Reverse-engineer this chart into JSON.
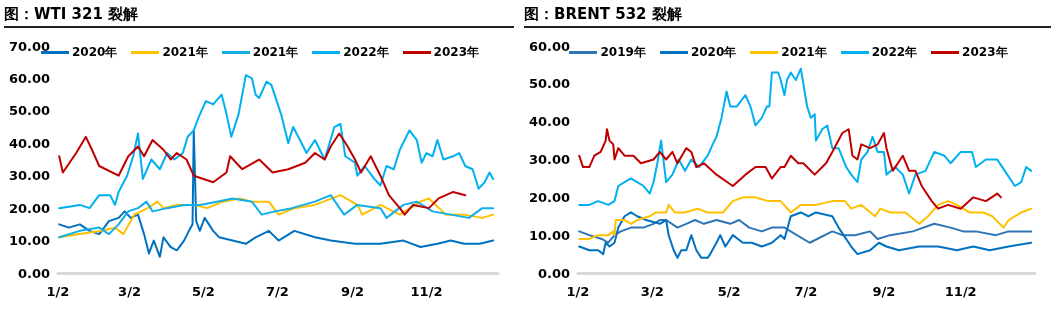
{
  "chart_data": [
    {
      "type": "line",
      "title": "图：WTI 321 裂解",
      "legend": "top",
      "marker": "none",
      "line_style": "solid",
      "xlim": [
        "--01-02",
        "--12-31"
      ],
      "xticks": [
        {
          "value": "--01-02",
          "label": "1/2"
        },
        {
          "value": "--03-02",
          "label": "3/2"
        },
        {
          "value": "--05-02",
          "label": "5/2"
        },
        {
          "value": "--07-02",
          "label": "7/2"
        },
        {
          "value": "--09-02",
          "label": "9/2"
        },
        {
          "value": "--11-02",
          "label": "11/2"
        }
      ],
      "ylim": [
        0,
        70
      ],
      "yticks": [
        {
          "value": 0,
          "label": "0.00"
        },
        {
          "value": 10,
          "label": "10.00"
        },
        {
          "value": 20,
          "label": "20.00"
        },
        {
          "value": 30,
          "label": "30.00"
        },
        {
          "value": 40,
          "label": "40.00"
        },
        {
          "value": 50,
          "label": "50.00"
        },
        {
          "value": 60,
          "label": "60.00"
        },
        {
          "value": 70,
          "label": "70.00"
        }
      ],
      "series": [
        {
          "name": "2020年",
          "color": "#0070c0",
          "x": [
            "--01-03",
            "--01-11",
            "--01-20",
            "--01-28",
            "--02-05",
            "--02-13",
            "--02-21",
            "--02-26",
            "--03-03",
            "--03-09",
            "--03-14",
            "--03-18",
            "--03-22",
            "--03-27",
            "--03-30",
            "--04-05",
            "--04-10",
            "--04-16",
            "--04-20",
            "--04-23",
            "--04-24",
            "--04-26",
            "--04-29",
            "--05-03",
            "--05-10",
            "--05-15",
            "--05-26",
            "--06-06",
            "--06-14",
            "--06-25",
            "--07-03",
            "--07-16",
            "--08-02",
            "--08-15",
            "--09-04",
            "--09-25",
            "--10-14",
            "--10-28",
            "--11-11",
            "--11-22",
            "--12-03",
            "--12-16",
            "--12-27"
          ],
          "values": [
            15,
            14,
            15,
            13,
            12,
            16,
            17,
            19,
            17,
            18,
            12,
            6,
            10,
            5,
            11,
            8,
            7,
            10,
            13,
            15,
            44,
            16,
            13,
            17,
            13,
            11,
            10,
            9,
            11,
            13,
            10,
            13,
            11,
            10,
            9,
            9,
            10,
            8,
            9,
            10,
            9,
            9,
            10
          ]
        },
        {
          "name": "2021年",
          "color": "#ffc000",
          "x": [
            "--01-03",
            "--01-20",
            "--02-07",
            "--02-18",
            "--02-25",
            "--03-06",
            "--03-17",
            "--03-25",
            "--03-30",
            "--04-10",
            "--04-24",
            "--05-05",
            "--05-18",
            "--06-01",
            "--06-11",
            "--06-25",
            "--07-03",
            "--07-16",
            "--08-02",
            "--08-23",
            "--09-06",
            "--09-10",
            "--09-25",
            "--10-11",
            "--10-28",
            "--11-04",
            "--11-18",
            "--12-03",
            "--12-18",
            "--12-27"
          ],
          "values": [
            11,
            12,
            13,
            14,
            12,
            18,
            20,
            22,
            20,
            21,
            21,
            20,
            22,
            23,
            22,
            22,
            18,
            20,
            21,
            24,
            21,
            18,
            21,
            18,
            22,
            23,
            18,
            18,
            17,
            18
          ]
        },
        {
          "name": "2021年",
          "color": "#12aee8",
          "x": [
            "--01-03",
            "--01-20",
            "--02-05",
            "--02-13",
            "--02-21",
            "--03-01",
            "--03-09",
            "--03-16",
            "--03-21",
            "--04-02",
            "--04-16",
            "--04-29",
            "--05-13",
            "--05-26",
            "--06-11",
            "--06-19",
            "--06-30",
            "--07-14",
            "--08-02",
            "--08-15",
            "--08-26",
            "--09-06",
            "--09-25",
            "--09-30",
            "--10-14",
            "--10-25",
            "--11-07",
            "--11-22",
            "--12-07",
            "--12-18",
            "--12-27"
          ],
          "values": [
            11,
            13,
            14,
            12,
            15,
            19,
            20,
            22,
            19,
            20,
            21,
            21,
            22,
            23,
            22,
            18,
            19,
            20,
            22,
            24,
            18,
            21,
            20,
            17,
            21,
            22,
            19,
            18,
            17,
            20,
            20
          ]
        },
        {
          "name": "2022年",
          "color": "#00b0f0",
          "x": [
            "--01-03",
            "--01-20",
            "--01-28",
            "--02-05",
            "--02-14",
            "--02-18",
            "--02-21",
            "--02-28",
            "--03-05",
            "--03-09",
            "--03-13",
            "--03-20",
            "--03-27",
            "--04-02",
            "--04-08",
            "--04-15",
            "--04-19",
            "--04-24",
            "--04-28",
            "--05-04",
            "--05-10",
            "--05-17",
            "--05-21",
            "--05-25",
            "--05-31",
            "--06-02",
            "--06-06",
            "--06-11",
            "--06-14",
            "--06-17",
            "--06-23",
            "--06-27",
            "--07-05",
            "--07-11",
            "--07-15",
            "--07-22",
            "--07-26",
            "--08-02",
            "--08-10",
            "--08-18",
            "--08-23",
            "--08-27",
            "--09-04",
            "--09-06",
            "--09-12",
            "--09-20",
            "--09-25",
            "--09-30",
            "--10-06",
            "--10-11",
            "--10-19",
            "--10-25",
            "--10-29",
            "--11-02",
            "--11-07",
            "--11-11",
            "--11-16",
            "--11-24",
            "--11-29",
            "--12-04",
            "--12-10",
            "--12-15",
            "--12-20",
            "--12-24",
            "--12-27"
          ],
          "values": [
            20,
            21,
            20,
            24,
            24,
            21,
            25,
            30,
            36,
            43,
            29,
            35,
            32,
            37,
            35,
            37,
            42,
            44,
            48,
            53,
            52,
            55,
            49,
            42,
            49,
            53,
            61,
            60,
            55,
            54,
            59,
            58,
            49,
            40,
            45,
            40,
            37,
            41,
            35,
            45,
            46,
            36,
            34,
            30,
            33,
            29,
            27,
            33,
            32,
            38,
            44,
            41,
            34,
            37,
            36,
            41,
            35,
            36,
            37,
            33,
            32,
            26,
            28,
            31,
            29
          ]
        },
        {
          "name": "2023年",
          "color": "#c00000",
          "x": [
            "--01-03",
            "--01-06",
            "--01-17",
            "--01-25",
            "--01-30",
            "--02-05",
            "--02-21",
            "--03-01",
            "--03-09",
            "--03-14",
            "--03-21",
            "--03-30",
            "--04-05",
            "--04-10",
            "--04-18",
            "--04-24",
            "--05-10",
            "--05-21",
            "--05-24",
            "--06-03",
            "--06-17",
            "--06-28",
            "--07-11",
            "--07-25",
            "--08-02",
            "--08-10",
            "--08-15",
            "--08-22",
            "--08-29",
            "--09-04",
            "--09-09",
            "--09-17",
            "--09-25",
            "--10-02",
            "--10-11",
            "--10-15",
            "--10-22",
            "--11-04",
            "--11-12",
            "--11-24",
            "--12-04"
          ],
          "values": [
            36,
            31,
            37,
            42,
            38,
            33,
            30,
            36,
            39,
            36,
            41,
            38,
            35,
            37,
            35,
            30,
            28,
            31,
            36,
            32,
            35,
            31,
            32,
            34,
            37,
            35,
            39,
            43,
            39,
            35,
            31,
            36,
            30,
            24,
            20,
            18,
            21,
            20,
            23,
            25,
            24
          ]
        }
      ]
    },
    {
      "type": "line",
      "title": "图：BRENT 532 裂解",
      "legend": "top",
      "marker": "none",
      "line_style": "solid",
      "xlim": [
        "--01-02",
        "--12-31"
      ],
      "xticks": [
        {
          "value": "--01-02",
          "label": "1/2"
        },
        {
          "value": "--03-02",
          "label": "3/2"
        },
        {
          "value": "--05-02",
          "label": "5/2"
        },
        {
          "value": "--07-02",
          "label": "7/2"
        },
        {
          "value": "--09-02",
          "label": "9/2"
        },
        {
          "value": "--11-02",
          "label": "11/2"
        }
      ],
      "ylim": [
        0,
        60
      ],
      "yticks": [
        {
          "value": 0,
          "label": "0.00"
        },
        {
          "value": 10,
          "label": "10.00"
        },
        {
          "value": 20,
          "label": "20.00"
        },
        {
          "value": 30,
          "label": "30.00"
        },
        {
          "value": 40,
          "label": "40.00"
        },
        {
          "value": 50,
          "label": "50.00"
        },
        {
          "value": 60,
          "label": "60.00"
        }
      ],
      "series": [
        {
          "name": "2019年",
          "color": "#2e75b6",
          "x": [
            "--01-03",
            "--01-11",
            "--01-21",
            "--01-26",
            "--01-31",
            "--02-05",
            "--02-13",
            "--02-23",
            "--03-03",
            "--03-08",
            "--03-13",
            "--03-22",
            "--03-29",
            "--04-05",
            "--04-12",
            "--04-22",
            "--05-03",
            "--05-10",
            "--05-18",
            "--05-28",
            "--06-05",
            "--06-12",
            "--06-15",
            "--07-05",
            "--07-23",
            "--07-31",
            "--08-10",
            "--08-22",
            "--08-28",
            "--09-07",
            "--09-25",
            "--10-12",
            "--10-25",
            "--11-04",
            "--11-14",
            "--11-30",
            "--12-10",
            "--12-28"
          ],
          "values": [
            11,
            10,
            9,
            8,
            10,
            11,
            12,
            12,
            13,
            14,
            14,
            12,
            13,
            14,
            13,
            14,
            13,
            14,
            12,
            11,
            12,
            12,
            12,
            8,
            11,
            10,
            10,
            11,
            9,
            10,
            11,
            13,
            12,
            11,
            11,
            10,
            11,
            11
          ]
        },
        {
          "name": "2020年",
          "color": "#0070c0",
          "x": [
            "--01-03",
            "--01-11",
            "--01-18",
            "--01-22",
            "--01-24",
            "--01-27",
            "--01-31",
            "--02-03",
            "--02-08",
            "--02-13",
            "--02-18",
            "--02-25",
            "--03-08",
            "--03-13",
            "--03-15",
            "--03-19",
            "--03-22",
            "--03-25",
            "--03-29",
            "--04-02",
            "--04-06",
            "--04-10",
            "--04-15",
            "--04-17",
            "--04-22",
            "--04-25",
            "--04-29",
            "--05-05",
            "--05-13",
            "--05-20",
            "--05-28",
            "--06-05",
            "--06-12",
            "--06-15",
            "--06-20",
            "--06-28",
            "--07-04",
            "--07-10",
            "--07-23",
            "--07-28",
            "--08-07",
            "--08-12",
            "--08-22",
            "--08-29",
            "--09-04",
            "--09-14",
            "--09-30",
            "--10-15",
            "--10-30",
            "--11-12",
            "--11-25",
            "--12-10",
            "--12-28"
          ],
          "values": [
            7,
            6,
            6,
            5,
            8,
            7,
            8,
            12,
            15,
            16,
            15,
            14,
            13,
            14,
            10,
            6,
            4,
            6,
            6,
            10,
            6,
            4,
            4,
            5,
            8,
            10,
            7,
            10,
            8,
            8,
            7,
            8,
            10,
            9,
            15,
            16,
            15,
            16,
            15,
            12,
            7,
            5,
            6,
            8,
            7,
            6,
            7,
            7,
            6,
            7,
            6,
            7,
            8
          ]
        },
        {
          "name": "2021年",
          "color": "#ffc000",
          "x": [
            "--01-03",
            "--01-11",
            "--01-18",
            "--01-26",
            "--01-30",
            "--01-31",
            "--02-01",
            "--02-08",
            "--02-13",
            "--02-18",
            "--02-28",
            "--03-05",
            "--03-13",
            "--03-15",
            "--03-20",
            "--03-28",
            "--04-07",
            "--04-15",
            "--04-22",
            "--04-27",
            "--05-05",
            "--05-13",
            "--05-23",
            "--06-02",
            "--06-12",
            "--06-20",
            "--06-28",
            "--07-10",
            "--07-23",
            "--08-02",
            "--08-07",
            "--08-15",
            "--08-26",
            "--08-30",
            "--09-07",
            "--09-19",
            "--09-30",
            "--10-07",
            "--10-15",
            "--10-23",
            "--10-30",
            "--11-09",
            "--11-20",
            "--11-27",
            "--12-06",
            "--12-10",
            "--12-20",
            "--12-28"
          ],
          "values": [
            9,
            9,
            10,
            10,
            11,
            10,
            14,
            14,
            13,
            14,
            15,
            16,
            16,
            18,
            16,
            16,
            17,
            16,
            16,
            16,
            19,
            20,
            20,
            19,
            19,
            16,
            18,
            18,
            19,
            19,
            17,
            18,
            15,
            17,
            16,
            16,
            13,
            15,
            18,
            19,
            18,
            16,
            16,
            15,
            12,
            14,
            16,
            17
          ]
        },
        {
          "name": "2022年",
          "color": "#00b0f0",
          "x": [
            "--01-03",
            "--01-11",
            "--01-18",
            "--01-26",
            "--01-31",
            "--02-03",
            "--02-08",
            "--02-13",
            "--02-18",
            "--02-23",
            "--02-28",
            "--03-03",
            "--03-06",
            "--03-09",
            "--03-13",
            "--03-18",
            "--03-23",
            "--03-28",
            "--04-02",
            "--04-08",
            "--04-15",
            "--04-19",
            "--04-22",
            "--04-26",
            "--04-30",
            "--05-03",
            "--05-08",
            "--05-15",
            "--05-19",
            "--05-23",
            "--05-28",
            "--06-01",
            "--06-03",
            "--06-05",
            "--06-10",
            "--06-12",
            "--06-15",
            "--06-17",
            "--06-20",
            "--06-24",
            "--06-28",
            "--07-03",
            "--07-06",
            "--07-09",
            "--07-10",
            "--07-15",
            "--07-19",
            "--07-23",
            "--07-28",
            "--08-03",
            "--08-07",
            "--08-12",
            "--08-15",
            "--08-20",
            "--08-24",
            "--08-28",
            "--09-02",
            "--09-04",
            "--09-11",
            "--09-17",
            "--09-22",
            "--09-27",
            "--10-05",
            "--10-12",
            "--10-20",
            "--10-25",
            "--11-02",
            "--11-11",
            "--11-14",
            "--11-22",
            "--12-01",
            "--12-07",
            "--12-15",
            "--12-20",
            "--12-24",
            "--12-28"
          ],
          "values": [
            18,
            18,
            19,
            18,
            19,
            23,
            24,
            25,
            24,
            23,
            21,
            24,
            29,
            35,
            24,
            26,
            30,
            27,
            30,
            28,
            31,
            34,
            36,
            41,
            48,
            44,
            44,
            47,
            44,
            39,
            41,
            44,
            44,
            53,
            53,
            51,
            47,
            51,
            53,
            51,
            54,
            44,
            41,
            42,
            35,
            38,
            39,
            33,
            33,
            28,
            26,
            24,
            30,
            32,
            36,
            32,
            32,
            26,
            28,
            26,
            21,
            26,
            27,
            32,
            31,
            29,
            32,
            32,
            28,
            30,
            30,
            27,
            23,
            24,
            28,
            27
          ]
        },
        {
          "name": "2023年",
          "color": "#c00000",
          "x": [
            "--01-03",
            "--01-06",
            "--01-11",
            "--01-15",
            "--01-20",
            "--01-24",
            "--01-25",
            "--01-27",
            "--01-30",
            "--01-31",
            "--02-03",
            "--02-08",
            "--02-15",
            "--02-21",
            "--03-03",
            "--03-08",
            "--03-13",
            "--03-18",
            "--03-22",
            "--03-29",
            "--04-02",
            "--04-06",
            "--04-12",
            "--04-22",
            "--05-05",
            "--05-15",
            "--05-23",
            "--05-31",
            "--06-05",
            "--06-12",
            "--06-15",
            "--06-20",
            "--06-26",
            "--06-30",
            "--07-09",
            "--07-18",
            "--07-23",
            "--07-31",
            "--08-05",
            "--08-08",
            "--08-12",
            "--08-15",
            "--08-22",
            "--08-28",
            "--09-02",
            "--09-04",
            "--09-09",
            "--09-17",
            "--09-22",
            "--09-27",
            "--10-02",
            "--10-10",
            "--10-15",
            "--10-23",
            "--11-02",
            "--11-12",
            "--11-22",
            "--12-01",
            "--12-04"
          ],
          "values": [
            31,
            28,
            28,
            31,
            32,
            35,
            38,
            35,
            34,
            30,
            33,
            31,
            31,
            29,
            30,
            32,
            30,
            32,
            29,
            33,
            32,
            28,
            29,
            26,
            23,
            26,
            28,
            28,
            25,
            28,
            28,
            31,
            29,
            29,
            26,
            29,
            32,
            37,
            38,
            31,
            30,
            34,
            33,
            34,
            37,
            33,
            27,
            31,
            27,
            27,
            23,
            19,
            17,
            18,
            17,
            20,
            19,
            21,
            20
          ]
        }
      ]
    }
  ]
}
